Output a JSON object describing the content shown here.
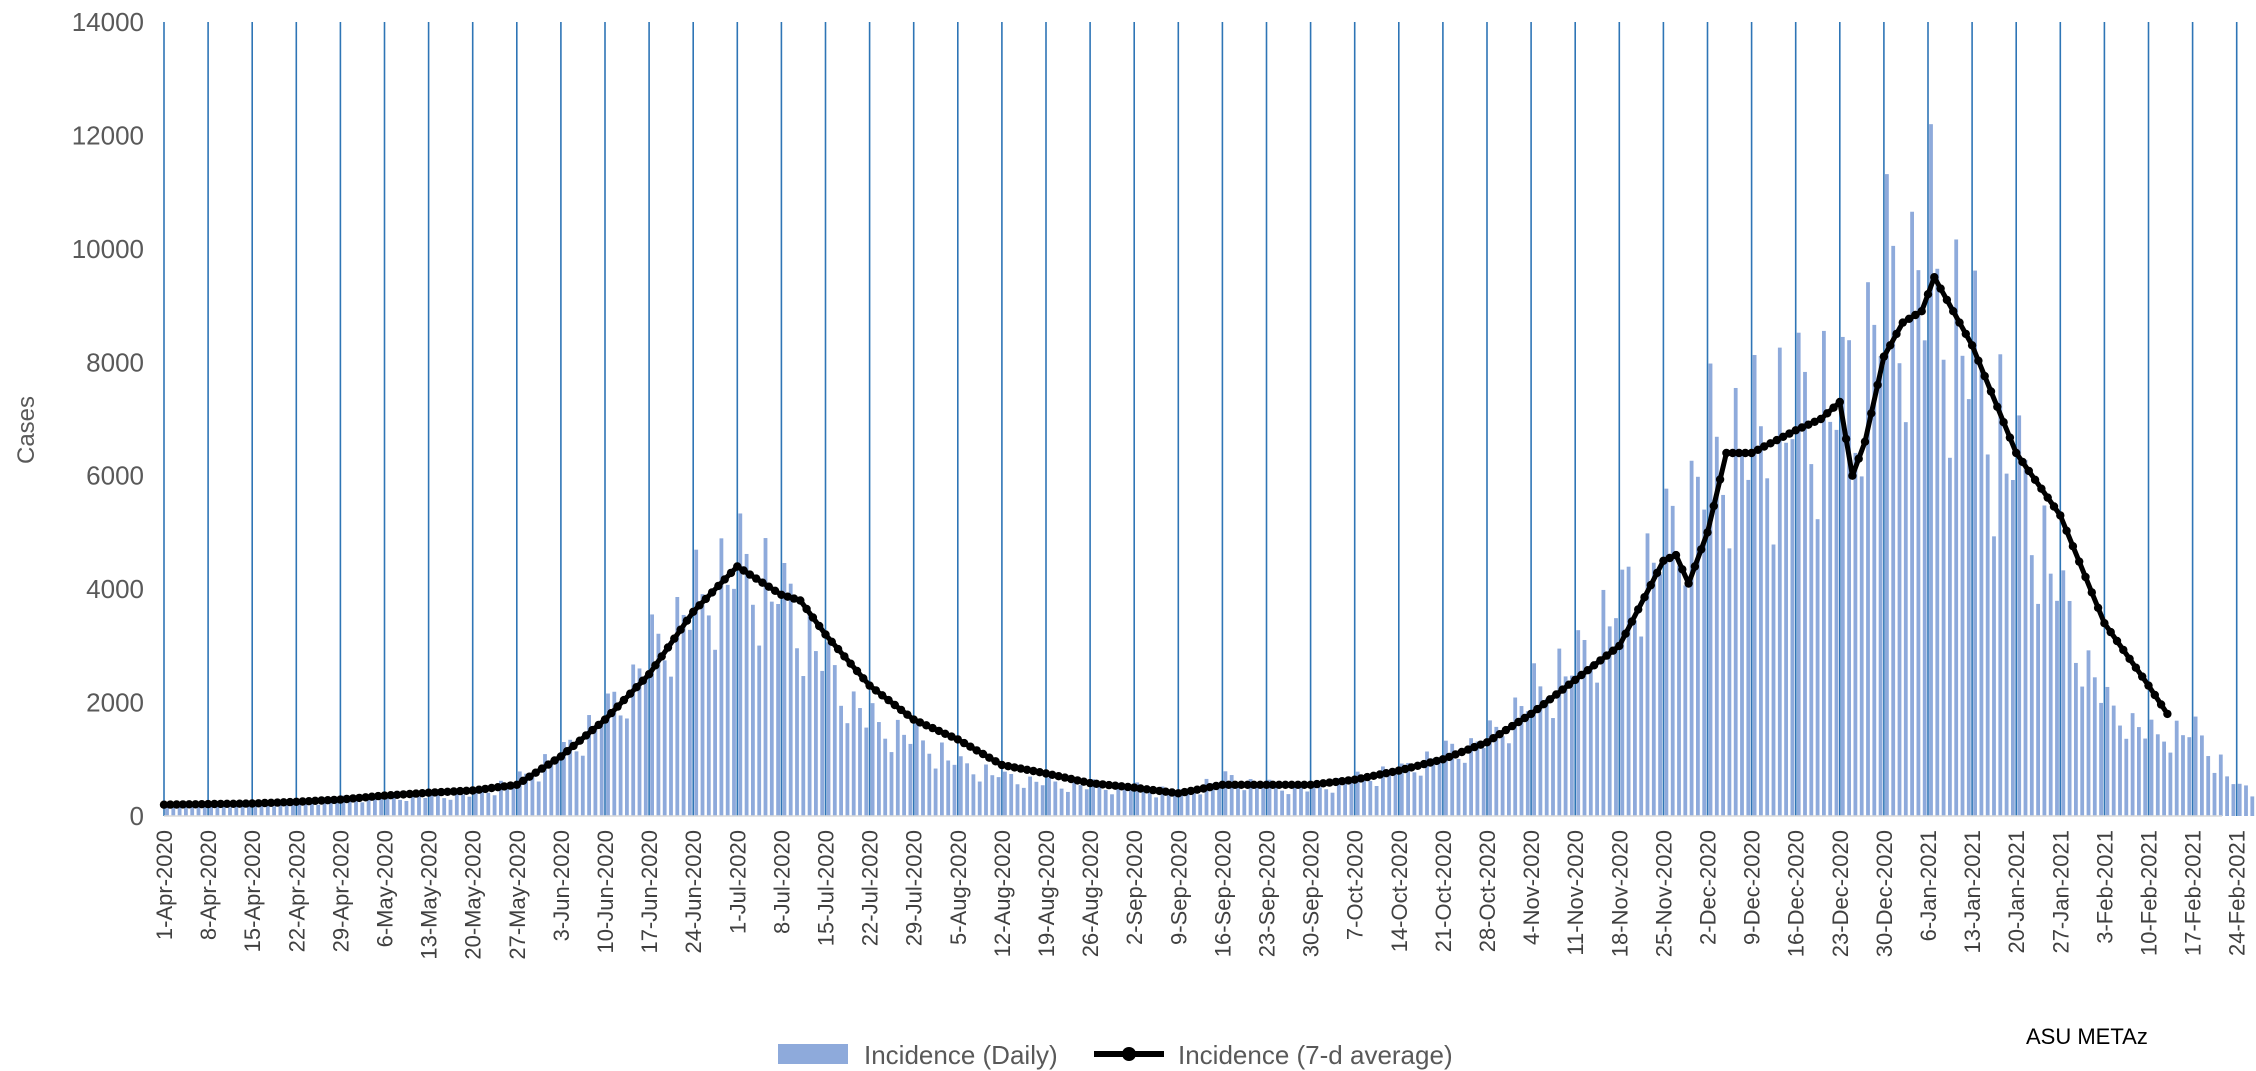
{
  "chart_data": {
    "type": "bar",
    "ylabel": "Cases",
    "ylim": [
      0,
      14000
    ],
    "yticks": [
      "0",
      "2000",
      "4000",
      "6000",
      "8000",
      "10000",
      "12000",
      "14000"
    ],
    "x_start_date": "2020-04-01",
    "x_tick_labels": [
      "1-Apr-2020",
      "8-Apr-2020",
      "15-Apr-2020",
      "22-Apr-2020",
      "29-Apr-2020",
      "6-May-2020",
      "13-May-2020",
      "20-May-2020",
      "27-May-2020",
      "3-Jun-2020",
      "10-Jun-2020",
      "17-Jun-2020",
      "24-Jun-2020",
      "1-Jul-2020",
      "8-Jul-2020",
      "15-Jul-2020",
      "22-Jul-2020",
      "29-Jul-2020",
      "5-Aug-2020",
      "12-Aug-2020",
      "19-Aug-2020",
      "26-Aug-2020",
      "2-Sep-2020",
      "9-Sep-2020",
      "16-Sep-2020",
      "23-Sep-2020",
      "30-Sep-2020",
      "7-Oct-2020",
      "14-Oct-2020",
      "21-Oct-2020",
      "28-Oct-2020",
      "4-Nov-2020",
      "11-Nov-2020",
      "18-Nov-2020",
      "25-Nov-2020",
      "2-Dec-2020",
      "9-Dec-2020",
      "16-Dec-2020",
      "23-Dec-2020",
      "30-Dec-2020",
      "6-Jan-2021",
      "13-Jan-2021",
      "20-Jan-2021",
      "27-Jan-2021",
      "3-Feb-2021",
      "10-Feb-2021",
      "17-Feb-2021",
      "24-Feb-2021"
    ],
    "grid": "vertical-weekly",
    "legend_position": "bottom",
    "credit": "ASU METAz",
    "series": [
      {
        "name": "Incidence (Daily)",
        "kind": "bar",
        "color": "#8eaadb",
        "x_dates": [
          "2020-04-01",
          "2020-04-08",
          "2020-04-15",
          "2020-04-22",
          "2020-04-29",
          "2020-05-06",
          "2020-05-13",
          "2020-05-20",
          "2020-05-27",
          "2020-06-03",
          "2020-06-10",
          "2020-06-17",
          "2020-06-24",
          "2020-07-01",
          "2020-07-08",
          "2020-07-15",
          "2020-07-22",
          "2020-07-29",
          "2020-08-05",
          "2020-08-12",
          "2020-08-19",
          "2020-08-26",
          "2020-09-02",
          "2020-09-09",
          "2020-09-16",
          "2020-09-23",
          "2020-09-30",
          "2020-10-07",
          "2020-10-14",
          "2020-10-21",
          "2020-10-28",
          "2020-11-04",
          "2020-11-11",
          "2020-11-18",
          "2020-11-25",
          "2020-12-02",
          "2020-12-09",
          "2020-12-16",
          "2020-12-23",
          "2020-12-30",
          "2021-01-06",
          "2021-01-13",
          "2021-01-20",
          "2021-01-27",
          "2021-02-03",
          "2021-02-10",
          "2021-02-17",
          "2021-02-24"
        ],
        "weekly_peak_values": [
          250,
          230,
          260,
          300,
          380,
          400,
          420,
          470,
          800,
          1400,
          2300,
          3600,
          4700,
          5500,
          4900,
          3200,
          2000,
          1700,
          1100,
          850,
          700,
          650,
          600,
          500,
          850,
          650,
          580,
          800,
          1000,
          1400,
          1700,
          2700,
          3400,
          4800,
          6000,
          8000,
          8200,
          9000,
          9200,
          11600,
          12200,
          9800,
          7600,
          4600,
          2300,
          1700,
          1800,
          650
        ],
        "weekly_avg_values": [
          220,
          200,
          230,
          270,
          330,
          380,
          410,
          450,
          620,
          1150,
          1800,
          2900,
          4000,
          4300,
          3700,
          2600,
          1700,
          1400,
          950,
          780,
          620,
          580,
          520,
          420,
          620,
          560,
          540,
          700,
          850,
          1150,
          1450,
          2200,
          2750,
          3900,
          4500,
          6300,
          6400,
          6900,
          6700,
          8700,
          9200,
          7100,
          5800,
          3900,
          2400,
          1800,
          1750,
          100
        ]
      },
      {
        "name": "Incidence (7-d average)",
        "kind": "line",
        "color": "#000000",
        "x_dates": [
          "2020-04-01",
          "2020-04-08",
          "2020-04-15",
          "2020-04-22",
          "2020-04-29",
          "2020-05-06",
          "2020-05-13",
          "2020-05-20",
          "2020-05-27",
          "2020-06-03",
          "2020-06-10",
          "2020-06-17",
          "2020-06-24",
          "2020-07-01",
          "2020-07-08",
          "2020-07-11",
          "2020-07-15",
          "2020-07-22",
          "2020-07-29",
          "2020-08-05",
          "2020-08-12",
          "2020-08-19",
          "2020-08-26",
          "2020-09-02",
          "2020-09-09",
          "2020-09-16",
          "2020-09-23",
          "2020-09-30",
          "2020-10-07",
          "2020-10-14",
          "2020-10-21",
          "2020-10-28",
          "2020-11-04",
          "2020-11-11",
          "2020-11-18",
          "2020-11-25",
          "2020-11-27",
          "2020-11-29",
          "2020-12-02",
          "2020-12-05",
          "2020-12-09",
          "2020-12-16",
          "2020-12-20",
          "2020-12-23",
          "2020-12-25",
          "2020-12-27",
          "2020-12-30",
          "2021-01-02",
          "2021-01-05",
          "2021-01-07",
          "2021-01-13",
          "2021-01-20",
          "2021-01-27",
          "2021-02-03",
          "2021-02-10",
          "2021-02-13"
        ],
        "values": [
          200,
          210,
          220,
          250,
          290,
          360,
          410,
          450,
          550,
          1050,
          1700,
          2500,
          3600,
          4400,
          3900,
          3800,
          3200,
          2300,
          1700,
          1350,
          900,
          750,
          580,
          500,
          400,
          550,
          550,
          550,
          640,
          800,
          1000,
          1300,
          1800,
          2400,
          3000,
          4500,
          4600,
          4100,
          5000,
          6400,
          6400,
          6800,
          7000,
          7300,
          6000,
          6600,
          8100,
          8700,
          8900,
          9500,
          8300,
          6400,
          5300,
          3400,
          2300,
          1800
        ]
      }
    ]
  }
}
